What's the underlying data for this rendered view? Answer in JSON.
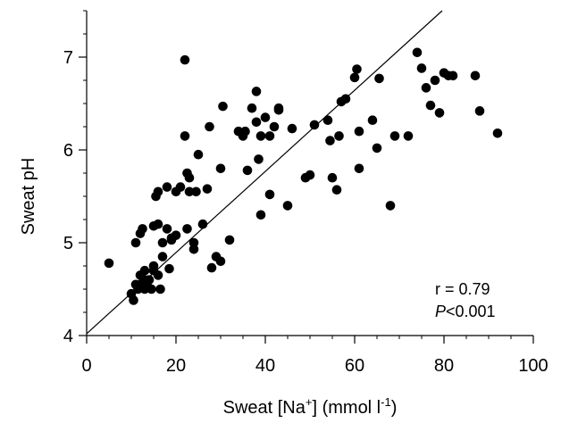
{
  "chart_data": {
    "type": "scatter",
    "title": "",
    "xlabel": {
      "prefix": "Sweat [Na",
      "sup1": "+",
      "middle": "] (mmol l",
      "sup2": "-1",
      "suffix": ")"
    },
    "ylabel": "Sweat pH",
    "xlim": [
      0,
      100
    ],
    "ylim": [
      4,
      7.5
    ],
    "x_ticks": [
      0,
      20,
      40,
      60,
      80,
      100
    ],
    "y_ticks": [
      4,
      5,
      6,
      7
    ],
    "x_minor_step": 5,
    "y_minor_step": 0.25,
    "grid": false,
    "marker_color": "#000000",
    "annotations": {
      "r_text": "r = 0.79",
      "p_italic": "P",
      "p_rest": "<0.001"
    },
    "regression_line": {
      "x": [
        0,
        79.6
      ],
      "y": [
        4.02,
        7.5
      ]
    },
    "series": [
      {
        "x": [
          5,
          10,
          10.5,
          11,
          11,
          11.5,
          12,
          12,
          12,
          12.5,
          13,
          13,
          13,
          13.5,
          14,
          14.5,
          15,
          15,
          15,
          15.5,
          16,
          16,
          16,
          16.5,
          17,
          17,
          18,
          18,
          18.5,
          19,
          19,
          20,
          20,
          21,
          22,
          22,
          22.5,
          22.5,
          23,
          23,
          24,
          24,
          24.5,
          25,
          26,
          27,
          27.5,
          28,
          29,
          30,
          30,
          30.5,
          32,
          34,
          35,
          35.5,
          36,
          37,
          38,
          38,
          38.5,
          39,
          39,
          40,
          41,
          41,
          42,
          43,
          43,
          45,
          46,
          49,
          50,
          51,
          54,
          54.5,
          55,
          56,
          56.5,
          57,
          58,
          60,
          60.5,
          61,
          61,
          64,
          65,
          65.5,
          68,
          69,
          72,
          74,
          75,
          76,
          77,
          78,
          79,
          80,
          81,
          82,
          87,
          88,
          92
        ],
        "y": [
          4.78,
          4.45,
          4.38,
          4.55,
          5.0,
          4.5,
          5.1,
          4.65,
          4.55,
          5.15,
          4.6,
          4.5,
          4.7,
          4.55,
          4.6,
          4.5,
          4.7,
          4.75,
          5.18,
          5.5,
          4.65,
          5.2,
          5.55,
          4.5,
          5.0,
          4.85,
          5.15,
          5.6,
          4.72,
          5.03,
          5.05,
          5.08,
          5.55,
          5.6,
          6.97,
          6.15,
          5.75,
          5.15,
          5.7,
          5.55,
          5.0,
          4.93,
          5.55,
          5.95,
          5.2,
          5.58,
          6.25,
          4.73,
          4.85,
          5.8,
          4.8,
          6.47,
          5.03,
          6.2,
          6.15,
          6.2,
          5.78,
          6.45,
          6.63,
          6.3,
          5.9,
          6.15,
          5.3,
          6.35,
          6.15,
          5.52,
          6.25,
          6.45,
          6.43,
          5.4,
          6.23,
          5.7,
          5.73,
          6.27,
          6.32,
          6.1,
          5.7,
          5.57,
          6.15,
          6.52,
          6.55,
          6.78,
          6.87,
          6.2,
          5.8,
          6.32,
          6.02,
          6.77,
          5.4,
          6.15,
          6.15,
          7.05,
          6.88,
          6.67,
          6.48,
          6.75,
          6.4,
          6.83,
          6.8,
          6.8,
          6.8,
          6.42,
          6.18
        ]
      }
    ]
  }
}
